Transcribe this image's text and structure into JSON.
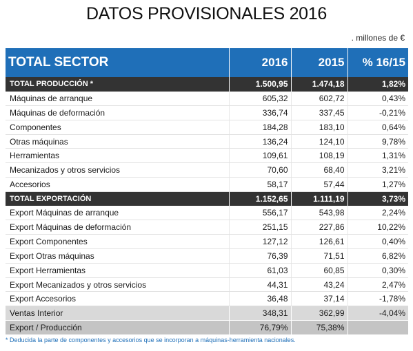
{
  "title": "DATOS PROVISIONALES 2016",
  "units": ". millones de €",
  "header": {
    "col1": "TOTAL SECTOR",
    "col2": "2016",
    "col3": "2015",
    "col4": "% 16/15"
  },
  "rows": [
    {
      "label": "TOTAL PRODUCCIÓN *",
      "v2016": "1.500,95",
      "v2015": "1.474,18",
      "pct": "1,82%"
    },
    {
      "label": "Máquinas de arranque",
      "v2016": "605,32",
      "v2015": "602,72",
      "pct": "0,43%"
    },
    {
      "label": "Máquinas de deformación",
      "v2016": "336,74",
      "v2015": "337,45",
      "pct": "-0,21%"
    },
    {
      "label": "Componentes",
      "v2016": "184,28",
      "v2015": "183,10",
      "pct": "0,64%"
    },
    {
      "label": "Otras máquinas",
      "v2016": "136,24",
      "v2015": "124,10",
      "pct": "9,78%"
    },
    {
      "label": "Herramientas",
      "v2016": "109,61",
      "v2015": "108,19",
      "pct": "1,31%"
    },
    {
      "label": "Mecanizados y otros servicios",
      "v2016": "70,60",
      "v2015": "68,40",
      "pct": "3,21%"
    },
    {
      "label": "Accesorios",
      "v2016": "58,17",
      "v2015": "57,44",
      "pct": "1,27%"
    },
    {
      "label": "TOTAL EXPORTACIÓN",
      "v2016": "1.152,65",
      "v2015": "1.111,19",
      "pct": "3,73%"
    },
    {
      "label": "Export Máquinas de arranque",
      "v2016": "556,17",
      "v2015": "543,98",
      "pct": "2,24%"
    },
    {
      "label": "Export Máquinas de deformación",
      "v2016": "251,15",
      "v2015": "227,86",
      "pct": "10,22%"
    },
    {
      "label": "Export Componentes",
      "v2016": "127,12",
      "v2015": "126,61",
      "pct": "0,40%"
    },
    {
      "label": "Export Otras máquinas",
      "v2016": "76,39",
      "v2015": "71,51",
      "pct": "6,82%"
    },
    {
      "label": "Export Herramientas",
      "v2016": "61,03",
      "v2015": "60,85",
      "pct": "0,30%"
    },
    {
      "label": "Export Mecanizados y otros servicios",
      "v2016": "44,31",
      "v2015": "43,24",
      "pct": "2,47%"
    },
    {
      "label": "Export Accesorios",
      "v2016": "36,48",
      "v2015": "37,14",
      "pct": "-1,78%"
    },
    {
      "label": "Ventas Interior",
      "v2016": "348,31",
      "v2015": "362,99",
      "pct": "-4,04%"
    },
    {
      "label": "Export / Producción",
      "v2016": "76,79%",
      "v2015": "75,38%",
      "pct": ""
    }
  ],
  "footnote": "* Deducida la parte de componentes y accesorios que se incorporan a máquinas-herramienta nacionales."
}
